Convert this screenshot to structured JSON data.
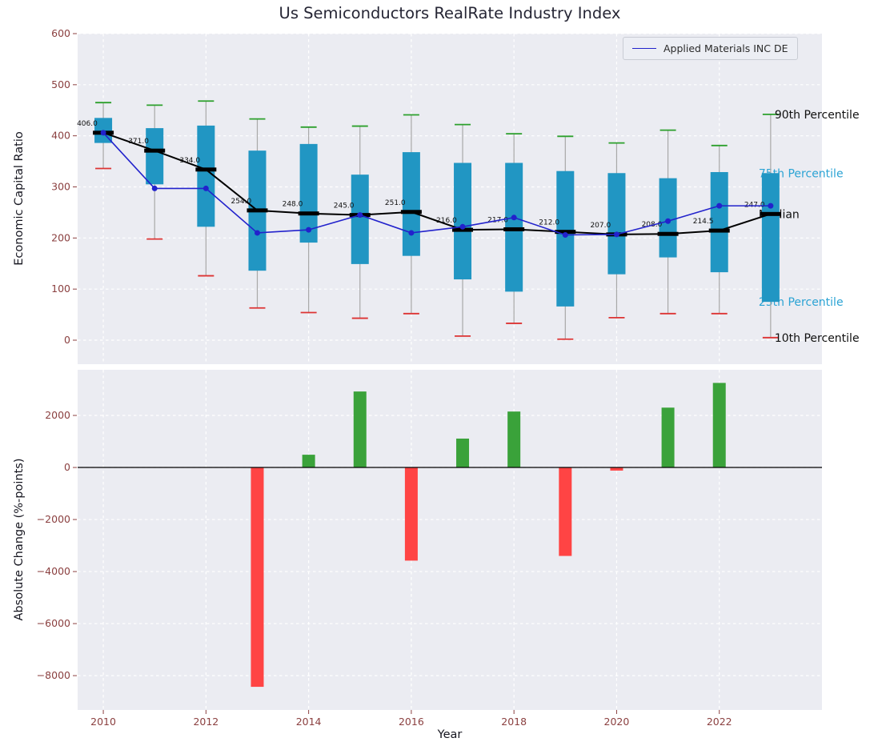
{
  "title": "Us Semiconductors RealRate Industry Index",
  "colors": {
    "box": "#2196c3",
    "cap_high": "#2ca02c",
    "cap_low": "#dd3333",
    "whisker": "#a8a8a8",
    "median": "#000000",
    "company_line": "#2222cc",
    "bar_pos": "#3aa23a",
    "bar_neg": "#ff4444",
    "plot_bg": "#ebecf2",
    "grid": "#ffffff",
    "tick": "#8b4040",
    "annotation_cyan": "#2ba3d4",
    "annotation_black": "#111111"
  },
  "xticks": [
    2010,
    2012,
    2014,
    2016,
    2018,
    2020,
    2022
  ],
  "xlim": [
    2009.5,
    2024
  ],
  "chart_data": [
    {
      "type": "percentile-box-timeseries",
      "ylabel": "Economic Capital Ratio",
      "ylim": [
        -47,
        600
      ],
      "yticks": [
        0,
        100,
        200,
        300,
        400,
        500,
        600
      ],
      "ytick_labels": [
        "0",
        "100",
        "200",
        "300",
        "400",
        "500",
        "600"
      ],
      "years": [
        2010,
        2011,
        2012,
        2013,
        2014,
        2015,
        2016,
        2017,
        2018,
        2019,
        2020,
        2021,
        2022,
        2023
      ],
      "p90": [
        465,
        460,
        468,
        433,
        417,
        419,
        441,
        422,
        404,
        399,
        386,
        411,
        381,
        442
      ],
      "p75": [
        435,
        415,
        420,
        371,
        384,
        324,
        368,
        347,
        347,
        331,
        327,
        317,
        329,
        327
      ],
      "median": [
        406,
        371,
        334,
        254,
        248,
        245,
        251,
        216,
        217,
        212,
        207,
        208,
        214.5,
        247
      ],
      "p25": [
        386,
        305,
        222,
        136,
        191,
        149,
        165,
        119,
        95,
        66,
        129,
        162,
        133,
        75
      ],
      "p10": [
        336,
        198,
        126,
        63,
        54,
        43,
        52,
        8,
        33,
        2,
        44,
        52,
        52,
        5
      ],
      "median_labels": [
        "406.0",
        "371.0",
        "334.0",
        "254.0",
        "248.0",
        "245.0",
        "251.0",
        "216.0",
        "217.0",
        "212.0",
        "207.0",
        "208.0",
        "214.5",
        "247.0"
      ],
      "company": {
        "name": "Applied Materials INC DE",
        "values": [
          406,
          297,
          297,
          210,
          216,
          245,
          210,
          222,
          240,
          206,
          207,
          233,
          263,
          263
        ]
      },
      "annotations": [
        {
          "name": "p90",
          "text": "90th Percentile",
          "value": 442,
          "color": "#111111",
          "layer": "front"
        },
        {
          "name": "p75",
          "text": "75th Percentile",
          "value": 327,
          "color": "#2ba3d4",
          "layer": "back"
        },
        {
          "name": "median",
          "text": "Median",
          "value": 247,
          "color": "#111111",
          "layer": "back"
        },
        {
          "name": "p25",
          "text": "25th Percentile",
          "value": 75,
          "color": "#2ba3d4",
          "layer": "back"
        },
        {
          "name": "p10",
          "text": "10th Percentile",
          "value": 5,
          "color": "#111111",
          "layer": "front"
        }
      ]
    },
    {
      "type": "bar",
      "ylabel": "Absolute Change (%-points)",
      "xlabel": "Year",
      "ylim": [
        -9320,
        3754
      ],
      "yticks": [
        2000,
        0,
        -2000,
        -4000,
        -6000,
        -8000
      ],
      "ytick_labels": [
        "2000",
        "0",
        "−2000",
        "−4000",
        "−6000",
        "−8000"
      ],
      "years": [
        2010,
        2011,
        2012,
        2013,
        2014,
        2015,
        2016,
        2017,
        2018,
        2019,
        2020,
        2021,
        2022,
        2023
      ],
      "values": [
        0,
        0,
        0,
        -8430,
        490,
        2920,
        -3580,
        1110,
        2150,
        -3400,
        -120,
        2300,
        3250,
        0
      ]
    }
  ]
}
